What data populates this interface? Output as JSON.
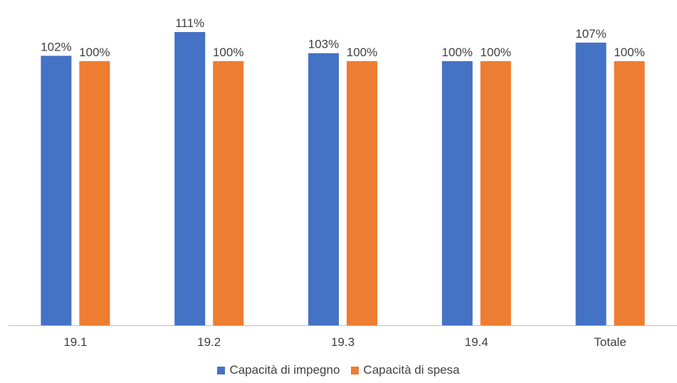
{
  "chart_data": {
    "type": "bar",
    "categories": [
      "19.1",
      "19.2",
      "19.3",
      "19.4",
      "Totale"
    ],
    "series": [
      {
        "name": "Capacità di impegno",
        "color": "#4472C4",
        "values": [
          102,
          111,
          103,
          100,
          107
        ],
        "labels": [
          "102%",
          "111%",
          "103%",
          "100%",
          "107%"
        ]
      },
      {
        "name": "Capacità di spesa",
        "color": "#ED7D31",
        "values": [
          100,
          100,
          100,
          100,
          100
        ],
        "labels": [
          "100%",
          "100%",
          "100%",
          "100%",
          "100%"
        ]
      }
    ],
    "ylim": [
      0,
      111
    ],
    "grid": false,
    "legend_position": "bottom"
  }
}
